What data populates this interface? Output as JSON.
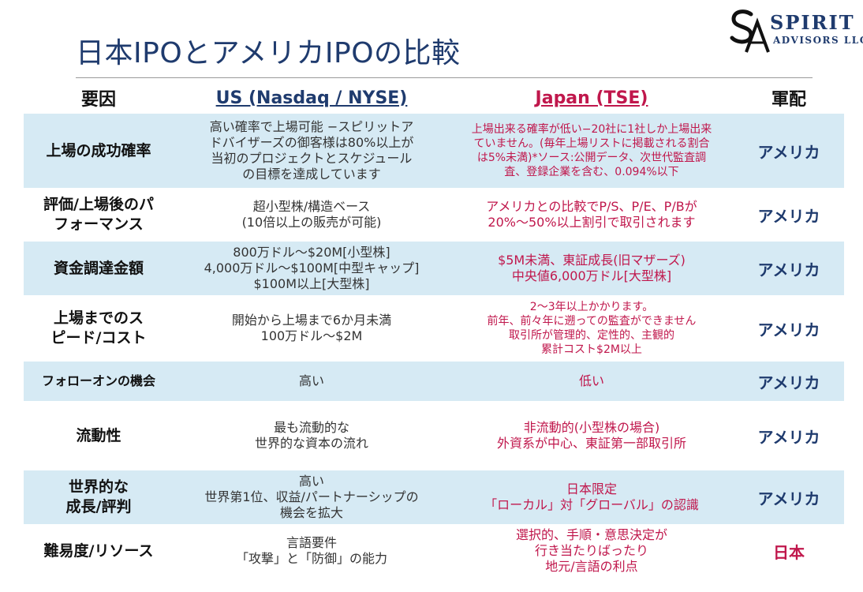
{
  "title": "日本IPOとアメリカIPOの比較",
  "logo": {
    "name_line1": "SPIRIT",
    "name_line2": "ADVISORS LLC"
  },
  "columns": {
    "factor": "要因",
    "us": "US (Nasdaq / NYSE)",
    "japan": "Japan (TSE)",
    "advantage": "軍配"
  },
  "rows": [
    {
      "factor": "上場の成功確率",
      "us": "高い確率で上場可能 −スピリットア\nドバイザーズの御客様は80%以上が\n当初のプロジェクトとスケジュール\nの目標を達成しています",
      "japan": "上場出来る確率が低い−20社に1社しか上場出来\nていません。(毎年上場リストに掲載される割合\nは5%未満)*ソース:公開データ、次世代監査調\n査、登録企業を含む、0.094%以下",
      "advantage": "アメリカ"
    },
    {
      "factor": "評価/上場後のパ\nフォーマンス",
      "us": "超小型株/構造ベース\n(10倍以上の販売が可能)",
      "japan": "アメリカとの比較でP/S、P/E、P/Bが\n20%〜50%以上割引で取引されます",
      "advantage": "アメリカ"
    },
    {
      "factor": "資金調達金額",
      "us": "800万ドル〜$20M[小型株]\n4,000万ドル〜$100M[中型キャップ]\n$100M以上[大型株]",
      "japan": "$5M未満、東証成長(旧マザーズ)\n中央値6,000万ドル[大型株]",
      "advantage": "アメリカ"
    },
    {
      "factor": "上場までのス\nピード/コスト",
      "us": "開始から上場まで6か月未満\n100万ドル〜$2M",
      "japan": "2〜3年以上かかります。\n前年、前々年に遡っての監査ができません\n取引所が管理的、定性的、主観的\n累計コスト$2M以上",
      "advantage": "アメリカ"
    },
    {
      "factor": "フォローオンの機会",
      "us": "高い",
      "japan": "低い",
      "advantage": "アメリカ"
    },
    {
      "factor": "流動性",
      "us": "最も流動的な\n世界的な資本の流れ",
      "japan": "非流動的(小型株の場合)\n外資系が中心、東証第一部取引所",
      "advantage": "アメリカ"
    },
    {
      "factor": "世界的な\n成長/評判",
      "us": "高い\n世界第1位、収益/パートナーシップの\n機会を拡大",
      "japan": "日本限定\n「ローカル」対「グローバル」の認識",
      "advantage": "アメリカ"
    },
    {
      "factor": "難易度/リソース",
      "us": "言語要件\n「攻撃」と「防御」の能力",
      "japan": "選択的、手順・意思決定が\n行き当たりばったり\n地元/言語の利点",
      "advantage": "日本"
    }
  ]
}
